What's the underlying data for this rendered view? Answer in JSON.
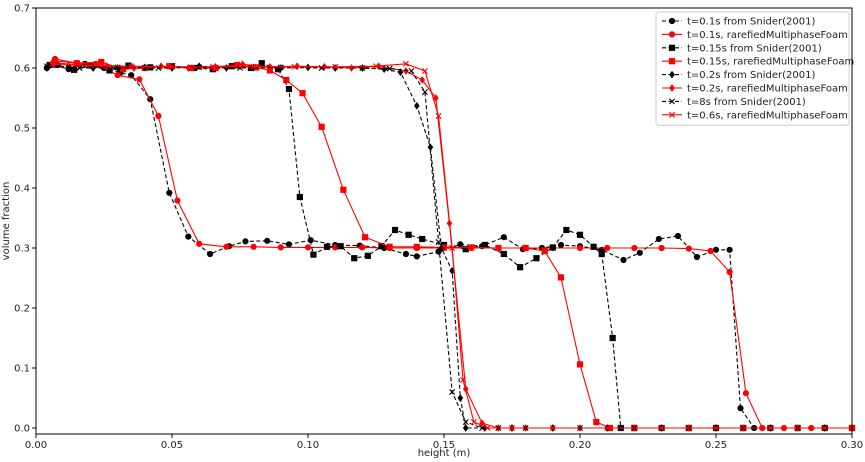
{
  "chart_data": {
    "type": "line",
    "xlabel": "height (m)",
    "ylabel": "volume fraction",
    "xlim": [
      0.0,
      0.3
    ],
    "ylim": [
      -0.01,
      0.7
    ],
    "xticks": [
      "0.00",
      "0.05",
      "0.10",
      "0.15",
      "0.20",
      "0.25",
      "0.30"
    ],
    "yticks": [
      "0.0",
      "0.1",
      "0.2",
      "0.3",
      "0.4",
      "0.5",
      "0.6",
      "0.7"
    ],
    "grid": false,
    "legend_position": "top-right",
    "series": [
      {
        "name": "t=0.1s from Snider(2001)",
        "color": "#000000",
        "dash": "dashed",
        "marker": "circle",
        "points": [
          [
            0.004,
            0.6
          ],
          [
            0.008,
            0.605
          ],
          [
            0.012,
            0.598
          ],
          [
            0.018,
            0.607
          ],
          [
            0.025,
            0.6
          ],
          [
            0.031,
            0.592
          ],
          [
            0.035,
            0.588
          ],
          [
            0.042,
            0.548
          ],
          [
            0.049,
            0.392
          ],
          [
            0.056,
            0.319
          ],
          [
            0.064,
            0.29
          ],
          [
            0.071,
            0.303
          ],
          [
            0.077,
            0.311
          ],
          [
            0.085,
            0.312
          ],
          [
            0.093,
            0.306
          ],
          [
            0.101,
            0.313
          ],
          [
            0.11,
            0.305
          ],
          [
            0.119,
            0.304
          ],
          [
            0.128,
            0.3
          ],
          [
            0.136,
            0.29
          ],
          [
            0.14,
            0.286
          ],
          [
            0.148,
            0.294
          ],
          [
            0.156,
            0.306
          ],
          [
            0.164,
            0.303
          ],
          [
            0.172,
            0.318
          ],
          [
            0.179,
            0.298
          ],
          [
            0.186,
            0.3
          ],
          [
            0.193,
            0.305
          ],
          [
            0.2,
            0.303
          ],
          [
            0.208,
            0.297
          ],
          [
            0.216,
            0.28
          ],
          [
            0.222,
            0.292
          ],
          [
            0.229,
            0.315
          ],
          [
            0.236,
            0.32
          ],
          [
            0.243,
            0.285
          ],
          [
            0.25,
            0.297
          ],
          [
            0.255,
            0.297
          ],
          [
            0.259,
            0.033
          ],
          [
            0.264,
            0.0
          ],
          [
            0.27,
            0.0
          ],
          [
            0.28,
            0.0
          ],
          [
            0.29,
            0.0
          ],
          [
            0.3,
            0.0
          ]
        ]
      },
      {
        "name": "t=0.1s, rarefiedMultiphaseFoam",
        "color": "#ff0000",
        "dash": "solid",
        "marker": "circle",
        "points": [
          [
            0.007,
            0.615
          ],
          [
            0.015,
            0.608
          ],
          [
            0.022,
            0.607
          ],
          [
            0.03,
            0.588
          ],
          [
            0.038,
            0.581
          ],
          [
            0.045,
            0.52
          ],
          [
            0.052,
            0.379
          ],
          [
            0.06,
            0.307
          ],
          [
            0.07,
            0.302
          ],
          [
            0.08,
            0.302
          ],
          [
            0.09,
            0.301
          ],
          [
            0.1,
            0.301
          ],
          [
            0.11,
            0.301
          ],
          [
            0.12,
            0.301
          ],
          [
            0.13,
            0.3
          ],
          [
            0.14,
            0.3
          ],
          [
            0.15,
            0.3
          ],
          [
            0.16,
            0.3
          ],
          [
            0.17,
            0.3
          ],
          [
            0.18,
            0.3
          ],
          [
            0.19,
            0.3
          ],
          [
            0.2,
            0.3
          ],
          [
            0.21,
            0.3
          ],
          [
            0.22,
            0.3
          ],
          [
            0.23,
            0.3
          ],
          [
            0.24,
            0.299
          ],
          [
            0.248,
            0.295
          ],
          [
            0.255,
            0.26
          ],
          [
            0.261,
            0.058
          ],
          [
            0.267,
            0.0
          ],
          [
            0.275,
            0.0
          ],
          [
            0.285,
            0.0
          ],
          [
            0.3,
            0.0
          ]
        ]
      },
      {
        "name": "t=0.15s from Snider(2001)",
        "color": "#000000",
        "dash": "dashed",
        "marker": "square",
        "points": [
          [
            0.005,
            0.605
          ],
          [
            0.014,
            0.597
          ],
          [
            0.02,
            0.604
          ],
          [
            0.027,
            0.596
          ],
          [
            0.034,
            0.604
          ],
          [
            0.042,
            0.601
          ],
          [
            0.05,
            0.603
          ],
          [
            0.058,
            0.6
          ],
          [
            0.065,
            0.598
          ],
          [
            0.072,
            0.603
          ],
          [
            0.079,
            0.6
          ],
          [
            0.083,
            0.608
          ],
          [
            0.089,
            0.598
          ],
          [
            0.093,
            0.565
          ],
          [
            0.097,
            0.385
          ],
          [
            0.102,
            0.289
          ],
          [
            0.107,
            0.302
          ],
          [
            0.112,
            0.303
          ],
          [
            0.117,
            0.283
          ],
          [
            0.122,
            0.287
          ],
          [
            0.127,
            0.303
          ],
          [
            0.132,
            0.33
          ],
          [
            0.137,
            0.322
          ],
          [
            0.142,
            0.315
          ],
          [
            0.15,
            0.305
          ],
          [
            0.158,
            0.298
          ],
          [
            0.165,
            0.305
          ],
          [
            0.172,
            0.29
          ],
          [
            0.178,
            0.268
          ],
          [
            0.184,
            0.283
          ],
          [
            0.19,
            0.301
          ],
          [
            0.195,
            0.33
          ],
          [
            0.2,
            0.322
          ],
          [
            0.205,
            0.302
          ],
          [
            0.208,
            0.29
          ],
          [
            0.212,
            0.15
          ],
          [
            0.215,
            0.0
          ],
          [
            0.22,
            0.0
          ],
          [
            0.23,
            0.0
          ],
          [
            0.24,
            0.0
          ],
          [
            0.25,
            0.0
          ],
          [
            0.26,
            0.0
          ],
          [
            0.27,
            0.0
          ],
          [
            0.28,
            0.0
          ],
          [
            0.29,
            0.0
          ],
          [
            0.3,
            0.0
          ]
        ]
      },
      {
        "name": "t=0.15s, rarefiedMultiphaseFoam",
        "color": "#ff0000",
        "dash": "solid",
        "marker": "square",
        "points": [
          [
            0.007,
            0.612
          ],
          [
            0.015,
            0.608
          ],
          [
            0.024,
            0.61
          ],
          [
            0.032,
            0.598
          ],
          [
            0.04,
            0.6
          ],
          [
            0.049,
            0.603
          ],
          [
            0.057,
            0.6
          ],
          [
            0.066,
            0.6
          ],
          [
            0.074,
            0.605
          ],
          [
            0.081,
            0.601
          ],
          [
            0.086,
            0.596
          ],
          [
            0.092,
            0.58
          ],
          [
            0.098,
            0.558
          ],
          [
            0.105,
            0.502
          ],
          [
            0.113,
            0.397
          ],
          [
            0.121,
            0.318
          ],
          [
            0.13,
            0.302
          ],
          [
            0.14,
            0.302
          ],
          [
            0.15,
            0.301
          ],
          [
            0.16,
            0.301
          ],
          [
            0.17,
            0.3
          ],
          [
            0.18,
            0.3
          ],
          [
            0.187,
            0.295
          ],
          [
            0.193,
            0.251
          ],
          [
            0.2,
            0.106
          ],
          [
            0.206,
            0.01
          ],
          [
            0.211,
            0.0
          ],
          [
            0.22,
            0.0
          ],
          [
            0.24,
            0.0
          ],
          [
            0.26,
            0.0
          ],
          [
            0.28,
            0.0
          ],
          [
            0.3,
            0.0
          ]
        ]
      },
      {
        "name": "t=0.2s from Snider(2001)",
        "color": "#000000",
        "dash": "dashed",
        "marker": "diamond",
        "points": [
          [
            0.004,
            0.6
          ],
          [
            0.012,
            0.603
          ],
          [
            0.021,
            0.6
          ],
          [
            0.03,
            0.6
          ],
          [
            0.04,
            0.601
          ],
          [
            0.05,
            0.6
          ],
          [
            0.06,
            0.603
          ],
          [
            0.07,
            0.6
          ],
          [
            0.08,
            0.601
          ],
          [
            0.09,
            0.6
          ],
          [
            0.1,
            0.601
          ],
          [
            0.11,
            0.6
          ],
          [
            0.12,
            0.6
          ],
          [
            0.128,
            0.598
          ],
          [
            0.134,
            0.593
          ],
          [
            0.14,
            0.537
          ],
          [
            0.145,
            0.468
          ],
          [
            0.149,
            0.3
          ],
          [
            0.153,
            0.262
          ],
          [
            0.156,
            0.05
          ],
          [
            0.158,
            0.0
          ],
          [
            0.165,
            0.0
          ],
          [
            0.175,
            0.0
          ],
          [
            0.19,
            0.0
          ],
          [
            0.21,
            0.0
          ],
          [
            0.23,
            0.0
          ],
          [
            0.25,
            0.0
          ],
          [
            0.27,
            0.0
          ],
          [
            0.29,
            0.0
          ],
          [
            0.3,
            0.0
          ]
        ]
      },
      {
        "name": "t=0.2s, rarefiedMultiphaseFoam",
        "color": "#ff0000",
        "dash": "solid",
        "marker": "diamond",
        "points": [
          [
            0.006,
            0.609
          ],
          [
            0.016,
            0.605
          ],
          [
            0.026,
            0.603
          ],
          [
            0.036,
            0.6
          ],
          [
            0.046,
            0.603
          ],
          [
            0.056,
            0.6
          ],
          [
            0.066,
            0.602
          ],
          [
            0.076,
            0.606
          ],
          [
            0.086,
            0.602
          ],
          [
            0.096,
            0.603
          ],
          [
            0.106,
            0.602
          ],
          [
            0.116,
            0.6
          ],
          [
            0.126,
            0.603
          ],
          [
            0.136,
            0.595
          ],
          [
            0.142,
            0.58
          ],
          [
            0.147,
            0.55
          ],
          [
            0.152,
            0.341
          ],
          [
            0.158,
            0.065
          ],
          [
            0.164,
            0.008
          ],
          [
            0.17,
            0.0
          ],
          [
            0.18,
            0.0
          ],
          [
            0.2,
            0.0
          ],
          [
            0.22,
            0.0
          ],
          [
            0.24,
            0.0
          ],
          [
            0.26,
            0.0
          ],
          [
            0.28,
            0.0
          ],
          [
            0.3,
            0.0
          ]
        ]
      },
      {
        "name": "t=8s from Snider(2001)",
        "color": "#000000",
        "dash": "dashed",
        "marker": "x",
        "points": [
          [
            0.004,
            0.603
          ],
          [
            0.016,
            0.6
          ],
          [
            0.03,
            0.601
          ],
          [
            0.045,
            0.6
          ],
          [
            0.06,
            0.601
          ],
          [
            0.075,
            0.6
          ],
          [
            0.09,
            0.601
          ],
          [
            0.105,
            0.6
          ],
          [
            0.12,
            0.6
          ],
          [
            0.13,
            0.599
          ],
          [
            0.138,
            0.595
          ],
          [
            0.143,
            0.56
          ],
          [
            0.148,
            0.31
          ],
          [
            0.153,
            0.06
          ],
          [
            0.158,
            0.01
          ],
          [
            0.164,
            0.0
          ],
          [
            0.17,
            0.0
          ],
          [
            0.18,
            0.0
          ],
          [
            0.2,
            0.0
          ],
          [
            0.22,
            0.0
          ],
          [
            0.24,
            0.0
          ],
          [
            0.26,
            0.0
          ],
          [
            0.28,
            0.0
          ],
          [
            0.3,
            0.0
          ]
        ]
      },
      {
        "name": "t=0.6s, rarefiedMultiphaseFoam",
        "color": "#ff0000",
        "dash": "solid",
        "marker": "x",
        "points": [
          [
            0.006,
            0.606
          ],
          [
            0.02,
            0.604
          ],
          [
            0.035,
            0.603
          ],
          [
            0.05,
            0.602
          ],
          [
            0.065,
            0.602
          ],
          [
            0.08,
            0.602
          ],
          [
            0.095,
            0.602
          ],
          [
            0.11,
            0.602
          ],
          [
            0.125,
            0.603
          ],
          [
            0.136,
            0.607
          ],
          [
            0.143,
            0.595
          ],
          [
            0.148,
            0.52
          ],
          [
            0.153,
            0.3
          ],
          [
            0.157,
            0.08
          ],
          [
            0.161,
            0.01
          ],
          [
            0.166,
            0.0
          ],
          [
            0.175,
            0.0
          ],
          [
            0.19,
            0.0
          ],
          [
            0.21,
            0.0
          ],
          [
            0.23,
            0.0
          ],
          [
            0.25,
            0.0
          ],
          [
            0.27,
            0.0
          ],
          [
            0.29,
            0.0
          ],
          [
            0.3,
            0.0
          ]
        ]
      }
    ]
  }
}
